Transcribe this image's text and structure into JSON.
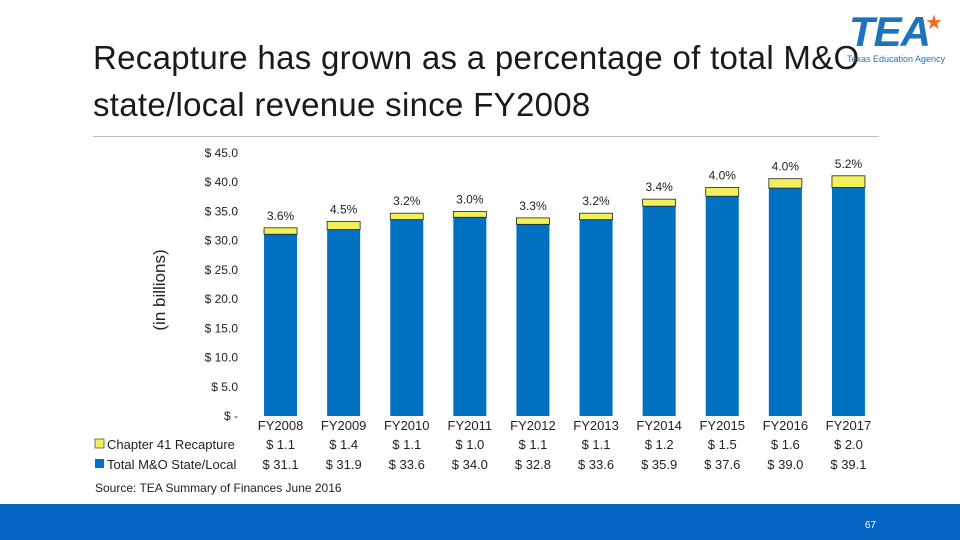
{
  "title": "Recapture has grown as a percentage of total M&O state/local revenue since FY2008",
  "logo": {
    "text": "TEA",
    "subtitle": "Texas Education Agency"
  },
  "source": "Source: TEA Summary of Finances June 2016",
  "page_number": "67",
  "colors": {
    "total": "#0070c0",
    "recapture": "#f2f05a",
    "footer": "#0563c1"
  },
  "chart_data": {
    "type": "bar",
    "stacked": true,
    "ylabel": "(in billions)",
    "ylim": [
      0,
      45
    ],
    "ytick_step": 5,
    "ytick_labels": [
      "$ -",
      "$ 5.0",
      "$ 10.0",
      "$ 15.0",
      "$ 20.0",
      "$ 25.0",
      "$ 30.0",
      "$ 35.0",
      "$ 40.0",
      "$ 45.0"
    ],
    "categories": [
      "FY2008",
      "FY2009",
      "FY2010",
      "FY2011",
      "FY2012",
      "FY2013",
      "FY2014",
      "FY2015",
      "FY2016",
      "FY2017"
    ],
    "series": [
      {
        "name": "Total M&O State/Local",
        "values": [
          31.1,
          31.9,
          33.6,
          34.0,
          32.8,
          33.6,
          35.9,
          37.6,
          39.0,
          39.1
        ],
        "labels": [
          "$ 31.1",
          "$ 31.9",
          "$ 33.6",
          "$ 34.0",
          "$ 32.8",
          "$ 33.6",
          "$ 35.9",
          "$ 37.6",
          "$ 39.0",
          "$ 39.1"
        ]
      },
      {
        "name": "Chapter 41 Recapture",
        "values": [
          1.1,
          1.4,
          1.1,
          1.0,
          1.1,
          1.1,
          1.2,
          1.5,
          1.6,
          2.0
        ],
        "labels": [
          "$ 1.1",
          "$ 1.4",
          "$ 1.1",
          "$ 1.0",
          "$ 1.1",
          "$ 1.1",
          "$ 1.2",
          "$ 1.5",
          "$ 1.6",
          "$ 2.0"
        ]
      }
    ],
    "percent_labels": [
      "3.6%",
      "4.5%",
      "3.2%",
      "3.0%",
      "3.3%",
      "3.2%",
      "3.4%",
      "4.0%",
      "4.0%",
      "5.2%"
    ]
  }
}
